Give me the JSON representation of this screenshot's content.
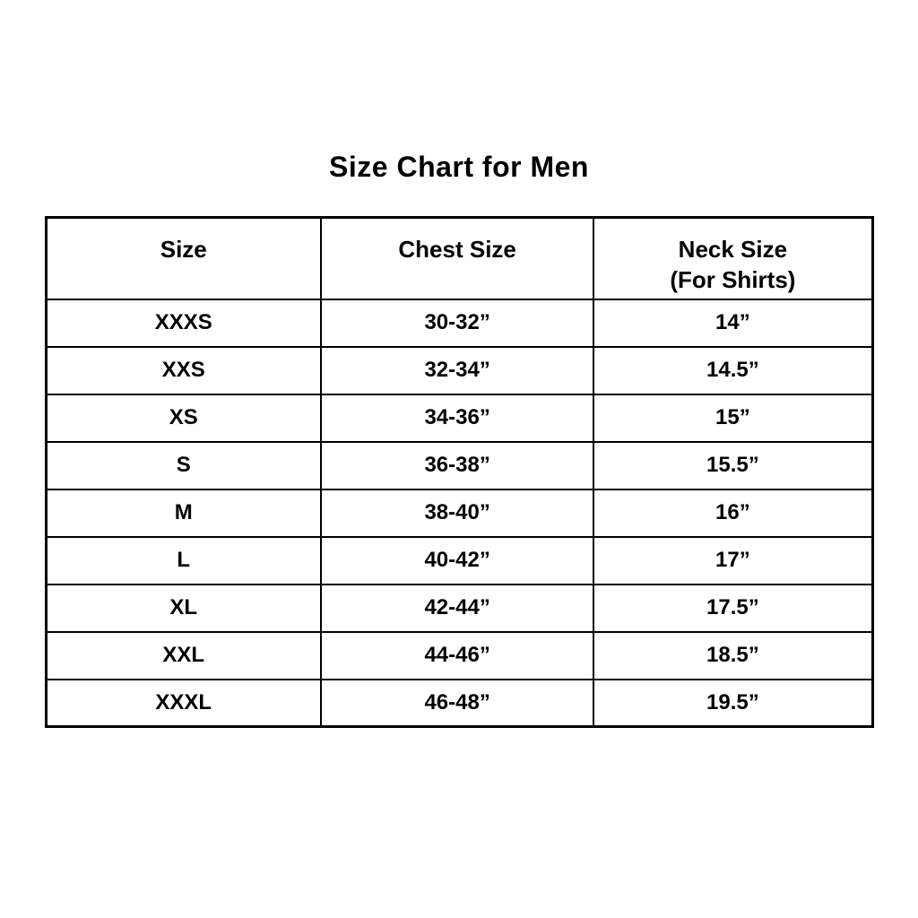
{
  "chart_data": {
    "type": "table",
    "title": "Size Chart for Men",
    "columns": [
      {
        "label": "Size",
        "sublabel": ""
      },
      {
        "label": "Chest Size",
        "sublabel": ""
      },
      {
        "label": "Neck Size",
        "sublabel": "(For Shirts)"
      }
    ],
    "rows": [
      [
        "XXXS",
        "30-32”",
        "14”"
      ],
      [
        "XXS",
        "32-34”",
        "14.5”"
      ],
      [
        "XS",
        "34-36”",
        "15”"
      ],
      [
        "S",
        "36-38”",
        "15.5”"
      ],
      [
        "M",
        "38-40”",
        "16”"
      ],
      [
        "L",
        "40-42”",
        "17”"
      ],
      [
        "XL",
        "42-44”",
        "17.5”"
      ],
      [
        "XXL",
        "44-46”",
        "18.5”"
      ],
      [
        "XXXL",
        "46-48”",
        "19.5”"
      ]
    ]
  },
  "colors": {
    "background": "#ffffff",
    "text": "#000000",
    "border": "#000000"
  }
}
